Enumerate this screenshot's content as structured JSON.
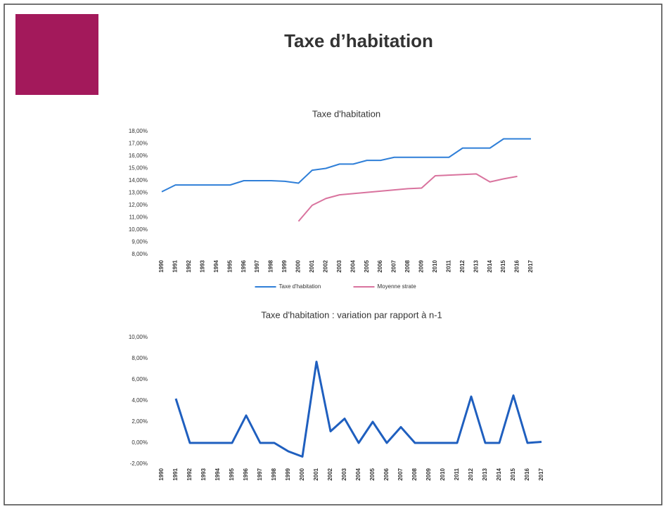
{
  "slide": {
    "title": "Taxe d’habitation"
  },
  "chart_data": [
    {
      "type": "line",
      "title": "Taxe d'habitation",
      "categories": [
        "1990",
        "1991",
        "1992",
        "1993",
        "1994",
        "1995",
        "1996",
        "1997",
        "1998",
        "1999",
        "2000",
        "2001",
        "2002",
        "2003",
        "2004",
        "2005",
        "2006",
        "2007",
        "2008",
        "2009",
        "2010",
        "2011",
        "2012",
        "2013",
        "2014",
        "2015",
        "2016",
        "2017"
      ],
      "series": [
        {
          "name": "Taxe d'habitation",
          "color": "#2f7fd8",
          "values": [
            13.1,
            13.65,
            13.65,
            13.65,
            13.65,
            13.65,
            14.0,
            14.0,
            14.0,
            13.95,
            13.8,
            14.85,
            15.0,
            15.35,
            15.35,
            15.65,
            15.65,
            15.9,
            15.9,
            15.9,
            15.9,
            15.9,
            16.65,
            16.65,
            16.65,
            17.4,
            17.4,
            17.4
          ]
        },
        {
          "name": "Moyenne strate",
          "color": "#d9739e",
          "values": [
            null,
            null,
            null,
            null,
            null,
            null,
            null,
            null,
            null,
            null,
            10.7,
            12.0,
            12.55,
            12.85,
            12.95,
            13.05,
            13.15,
            13.25,
            13.35,
            13.4,
            14.4,
            14.45,
            14.5,
            14.55,
            13.9,
            14.15,
            14.35,
            null
          ]
        }
      ],
      "ylim": [
        8,
        18
      ],
      "yticks": [
        {
          "value": 8,
          "label": "8,00%"
        },
        {
          "value": 9,
          "label": "9,00%"
        },
        {
          "value": 10,
          "label": "10,00%"
        },
        {
          "value": 11,
          "label": "11,00%"
        },
        {
          "value": 12,
          "label": "12,00%"
        },
        {
          "value": 13,
          "label": "13,00%"
        },
        {
          "value": 14,
          "label": "14,00%"
        },
        {
          "value": 15,
          "label": "15,00%"
        },
        {
          "value": 16,
          "label": "16,00%"
        },
        {
          "value": 17,
          "label": "17,00%"
        },
        {
          "value": 18,
          "label": "18,00%"
        }
      ],
      "legend": "bottom"
    },
    {
      "type": "line",
      "title": "Taxe d'habitation : variation par rapport à n-1",
      "categories": [
        "1990",
        "1991",
        "1992",
        "1993",
        "1994",
        "1995",
        "1996",
        "1997",
        "1998",
        "1999",
        "2000",
        "2001",
        "2002",
        "2003",
        "2004",
        "2005",
        "2006",
        "2007",
        "2008",
        "2009",
        "2010",
        "2011",
        "2012",
        "2013",
        "2014",
        "2015",
        "2016",
        "2017"
      ],
      "series": [
        {
          "name": "Taxe d'habitation",
          "color": "#1f5fbf",
          "values": [
            null,
            4.2,
            0,
            0,
            0,
            0,
            2.6,
            0,
            0,
            -0.8,
            -1.3,
            7.7,
            1.1,
            2.3,
            0,
            2.0,
            0,
            1.5,
            0,
            0,
            0,
            0,
            4.4,
            0,
            0,
            4.5,
            0,
            0.1
          ]
        }
      ],
      "ylim": [
        -2,
        10
      ],
      "yticks": [
        {
          "value": -2,
          "label": "-2,00%"
        },
        {
          "value": 0,
          "label": "0,00%"
        },
        {
          "value": 2,
          "label": "2,00%"
        },
        {
          "value": 4,
          "label": "4,00%"
        },
        {
          "value": 6,
          "label": "6,00%"
        },
        {
          "value": 8,
          "label": "8,00%"
        },
        {
          "value": 10,
          "label": "10,00%"
        }
      ]
    }
  ]
}
